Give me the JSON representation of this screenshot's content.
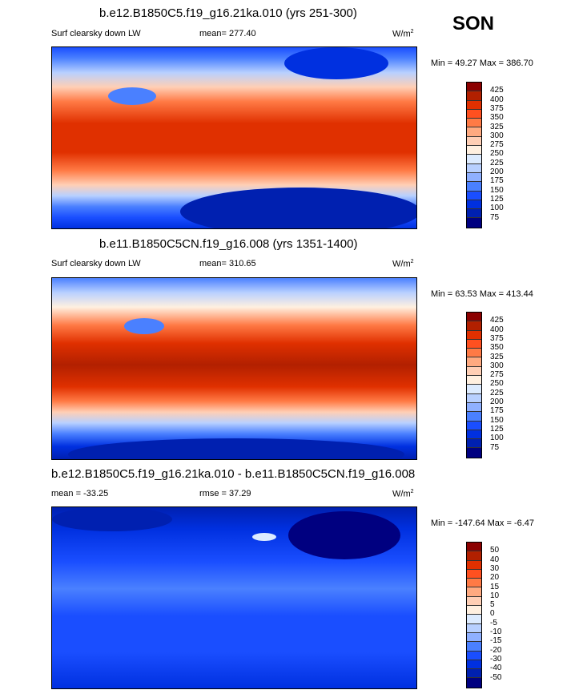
{
  "season": "SON",
  "colors": [
    "#8b0000",
    "#b22000",
    "#e03000",
    "#ff5020",
    "#ff7a45",
    "#ffaa80",
    "#ffcfb5",
    "#fff0e0",
    "#dcebff",
    "#b8d0ff",
    "#8fb0ff",
    "#4a80ff",
    "#1a4eff",
    "#0030e0",
    "#0020b0",
    "#000080"
  ],
  "panels": [
    {
      "title": "b.e12.B1850C5.f19_g16.21ka.010 (yrs 251-300)",
      "variable": "Surf clearsky down LW",
      "mean": "mean= 277.40",
      "units": "W/m",
      "units_sup": "2",
      "minmax": "Min =  49.27 Max = 386.70",
      "levels": [
        "425",
        "400",
        "375",
        "350",
        "325",
        "300",
        "275",
        "250",
        "225",
        "200",
        "175",
        "150",
        "125",
        "100",
        "75"
      ]
    },
    {
      "title": "b.e11.B1850C5CN.f19_g16.008 (yrs 1351-1400)",
      "variable": "Surf clearsky down LW",
      "mean": "mean= 310.65",
      "units": "W/m",
      "units_sup": "2",
      "minmax": "Min =  63.53 Max = 413.44",
      "levels": [
        "425",
        "400",
        "375",
        "350",
        "325",
        "300",
        "275",
        "250",
        "225",
        "200",
        "175",
        "150",
        "125",
        "100",
        "75"
      ]
    },
    {
      "title": "b.e12.B1850C5.f19_g16.21ka.010 - b.e11.B1850C5CN.f19_g16.008",
      "mean": "mean = -33.25",
      "rmse": "rmse =  37.29",
      "units": "W/m",
      "units_sup": "2",
      "minmax": "Min = -147.64 Max =  -6.47",
      "levels": [
        "50",
        "40",
        "30",
        "20",
        "15",
        "10",
        "5",
        "0",
        "-5",
        "-10",
        "-15",
        "-20",
        "-30",
        "-40",
        "-50"
      ]
    }
  ]
}
